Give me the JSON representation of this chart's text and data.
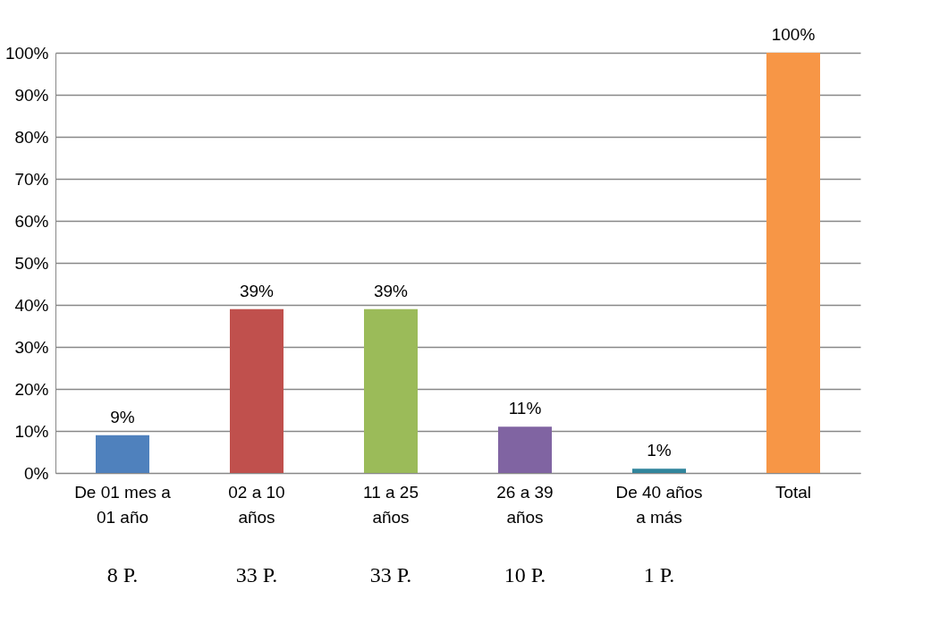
{
  "chart_data": {
    "type": "bar",
    "categories": [
      "De 01 mes a\n01 año",
      "02 a 10\naños",
      "11 a 25\naños",
      "26 a 39\naños",
      "De 40 años\na más",
      "Total"
    ],
    "values": [
      9,
      39,
      39,
      11,
      1,
      100
    ],
    "colors": [
      "#4f81bd",
      "#c0504d",
      "#9bbb59",
      "#8064a2",
      "#31859c",
      "#f79646"
    ],
    "value_labels": [
      "9%",
      "39%",
      "39%",
      "11%",
      "1%",
      "100%"
    ],
    "ylim": [
      0,
      100
    ],
    "yticks": [
      {
        "value": 0,
        "label": "0%"
      },
      {
        "value": 10,
        "label": "10%"
      },
      {
        "value": 20,
        "label": "20%"
      },
      {
        "value": 30,
        "label": "30%"
      },
      {
        "value": 40,
        "label": "40%"
      },
      {
        "value": 50,
        "label": "50%"
      },
      {
        "value": 60,
        "label": "60%"
      },
      {
        "value": 70,
        "label": "70%"
      },
      {
        "value": 80,
        "label": "80%"
      },
      {
        "value": 90,
        "label": "90%"
      },
      {
        "value": 100,
        "label": "100%"
      }
    ],
    "grid": "y",
    "annotations": [
      "8 P.",
      "33 P.",
      "33 P.",
      "10 P.",
      "1 P."
    ]
  }
}
